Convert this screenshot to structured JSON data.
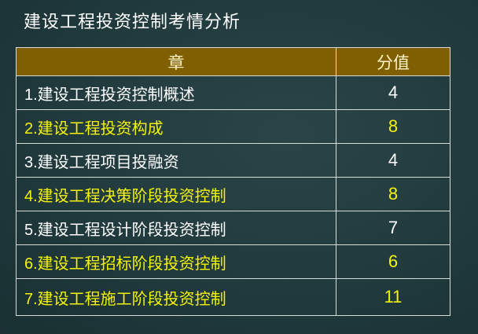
{
  "title": "建设工程投资控制考情分析",
  "table": {
    "headers": [
      "章",
      "分值"
    ],
    "rows": [
      {
        "chapter": "1.建设工程投资控制概述",
        "score": "4",
        "highlight": false
      },
      {
        "chapter": "2.建设工程投资构成",
        "score": "8",
        "highlight": true
      },
      {
        "chapter": "3.建设工程项目投融资",
        "score": "4",
        "highlight": false
      },
      {
        "chapter": "4.建设工程决策阶段投资控制",
        "score": "8",
        "highlight": true
      },
      {
        "chapter": "5.建设工程设计阶段投资控制",
        "score": "7",
        "highlight": false
      },
      {
        "chapter": "6.建设工程招标阶段投资控制",
        "score": "6",
        "highlight": true
      },
      {
        "chapter": "7.建设工程施工阶段投资控制",
        "score": "11",
        "highlight": true
      }
    ]
  },
  "colors": {
    "header_bg": "#7f5f00",
    "highlight_text": "#f4f40a",
    "background": "#203a3d"
  }
}
